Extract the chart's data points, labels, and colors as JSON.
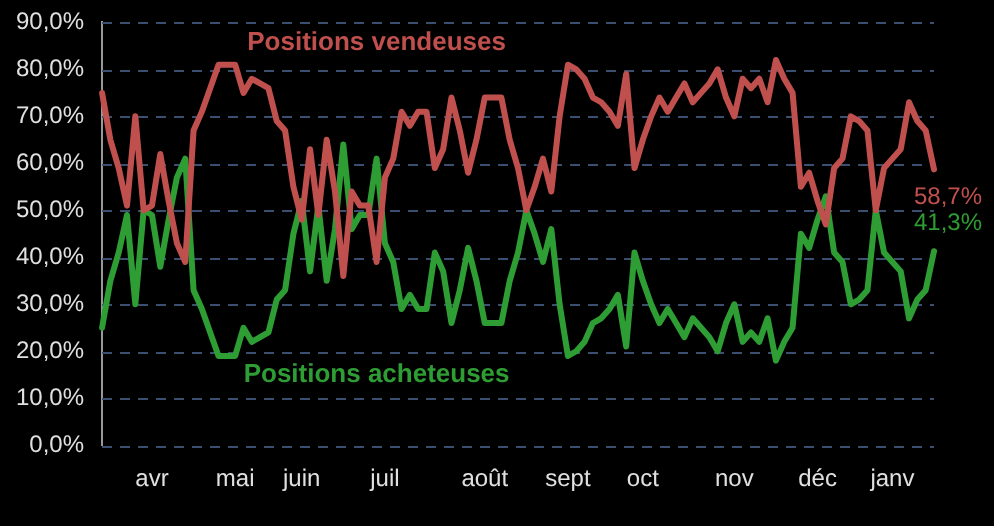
{
  "chart_data": {
    "type": "line",
    "categories": [
      null,
      null,
      null,
      null,
      null,
      null,
      "avr",
      null,
      null,
      null,
      null,
      null,
      null,
      null,
      null,
      null,
      "mai",
      null,
      null,
      null,
      null,
      null,
      null,
      null,
      "juin",
      null,
      null,
      null,
      null,
      null,
      null,
      null,
      null,
      null,
      "juil",
      null,
      null,
      null,
      null,
      null,
      null,
      null,
      null,
      null,
      null,
      null,
      "août",
      null,
      null,
      null,
      null,
      null,
      null,
      null,
      null,
      null,
      "sept",
      null,
      null,
      null,
      null,
      null,
      null,
      null,
      null,
      "oct",
      null,
      null,
      null,
      null,
      null,
      null,
      null,
      null,
      null,
      null,
      "nov",
      null,
      null,
      null,
      null,
      null,
      null,
      null,
      null,
      null,
      "déc",
      null,
      null,
      null,
      null,
      null,
      null,
      null,
      null,
      "janv",
      null,
      null,
      null,
      null,
      null
    ],
    "series": [
      {
        "name": "Positions vendeuses",
        "color": "#c0504d",
        "values": [
          75,
          65,
          59,
          51,
          70,
          50,
          51,
          62,
          52,
          43,
          39,
          67,
          71,
          76,
          81,
          81,
          81,
          75,
          78,
          77,
          76,
          69,
          67,
          55,
          48,
          63,
          49,
          65,
          54,
          36,
          54,
          51,
          51,
          39,
          57,
          61,
          71,
          68,
          71,
          71,
          59,
          63,
          74,
          67,
          58,
          65,
          74,
          74,
          74,
          65,
          59,
          50,
          55,
          61,
          54,
          70,
          81,
          80,
          78,
          74,
          73,
          71,
          68,
          79,
          59,
          65,
          70,
          74,
          71,
          74,
          77,
          73,
          75,
          77,
          80,
          74,
          70,
          78,
          76,
          78,
          73,
          82,
          78,
          75,
          55,
          58,
          52,
          47,
          59,
          61,
          70,
          69,
          67,
          50,
          59,
          61,
          63,
          73,
          69,
          67,
          58.7
        ],
        "value_labels": [
          null,
          null,
          null,
          null,
          null,
          null,
          null,
          null,
          null,
          null,
          null,
          null,
          null,
          null,
          null,
          null,
          null,
          null,
          null,
          null,
          null,
          null,
          null,
          null,
          null,
          null,
          null,
          null,
          null,
          null,
          null,
          null,
          null,
          null,
          null,
          null,
          null,
          null,
          null,
          null,
          null,
          null,
          null,
          null,
          null,
          null,
          null,
          null,
          null,
          null,
          null,
          null,
          null,
          null,
          null,
          null,
          null,
          null,
          null,
          null,
          null,
          null,
          null,
          null,
          null,
          null,
          null,
          null,
          null,
          null,
          null,
          null,
          null,
          null,
          null,
          null,
          null,
          null,
          null,
          null,
          null,
          null,
          null,
          null,
          null,
          null,
          null,
          null,
          null,
          null,
          null,
          null,
          null,
          null,
          null,
          null,
          null,
          null,
          null,
          null,
          "58,7%"
        ]
      },
      {
        "name": "Positions acheteuses",
        "color": "#2e9e34",
        "values": [
          25,
          35,
          41,
          49,
          30,
          50,
          49,
          38,
          48,
          57,
          61,
          33,
          29,
          24,
          19,
          19,
          19,
          25,
          22,
          23,
          24,
          31,
          33,
          45,
          52,
          37,
          51,
          35,
          46,
          64,
          46,
          49,
          49,
          61,
          43,
          39,
          29,
          32,
          29,
          29,
          41,
          37,
          26,
          33,
          42,
          35,
          26,
          26,
          26,
          35,
          41,
          50,
          45,
          39,
          46,
          30,
          19,
          20,
          22,
          26,
          27,
          29,
          32,
          21,
          41,
          35,
          30,
          26,
          29,
          26,
          23,
          27,
          25,
          23,
          20,
          26,
          30,
          22,
          24,
          22,
          27,
          18,
          22,
          25,
          45,
          42,
          48,
          53,
          41,
          39,
          30,
          31,
          33,
          50,
          41,
          39,
          37,
          27,
          31,
          33,
          41.3
        ],
        "value_labels": [
          null,
          null,
          null,
          null,
          null,
          null,
          null,
          null,
          null,
          null,
          null,
          null,
          null,
          null,
          null,
          null,
          null,
          null,
          null,
          null,
          null,
          null,
          null,
          null,
          null,
          null,
          null,
          null,
          null,
          null,
          null,
          null,
          null,
          null,
          null,
          null,
          null,
          null,
          null,
          null,
          null,
          null,
          null,
          null,
          null,
          null,
          null,
          null,
          null,
          null,
          null,
          null,
          null,
          null,
          null,
          null,
          null,
          null,
          null,
          null,
          null,
          null,
          null,
          null,
          null,
          null,
          null,
          null,
          null,
          null,
          null,
          null,
          null,
          null,
          null,
          null,
          null,
          null,
          null,
          null,
          null,
          null,
          null,
          null,
          null,
          null,
          null,
          null,
          null,
          null,
          null,
          null,
          null,
          null,
          null,
          null,
          null,
          null,
          null,
          null,
          "41,3%"
        ]
      }
    ],
    "ylim": [
      0,
      90
    ],
    "yticks": [
      {
        "value": 0,
        "label": "0,0%"
      },
      {
        "value": 10,
        "label": "10,0%"
      },
      {
        "value": 20,
        "label": "20,0%"
      },
      {
        "value": 30,
        "label": "30,0%"
      },
      {
        "value": 40,
        "label": "40,0%"
      },
      {
        "value": 50,
        "label": "50,0%"
      },
      {
        "value": 60,
        "label": "60,0%"
      },
      {
        "value": 70,
        "label": "70,0%"
      },
      {
        "value": 80,
        "label": "80,0%"
      },
      {
        "value": 90,
        "label": "90,0%"
      }
    ],
    "grid": "y",
    "legend": false,
    "marker": "none",
    "line_style": "solid"
  }
}
